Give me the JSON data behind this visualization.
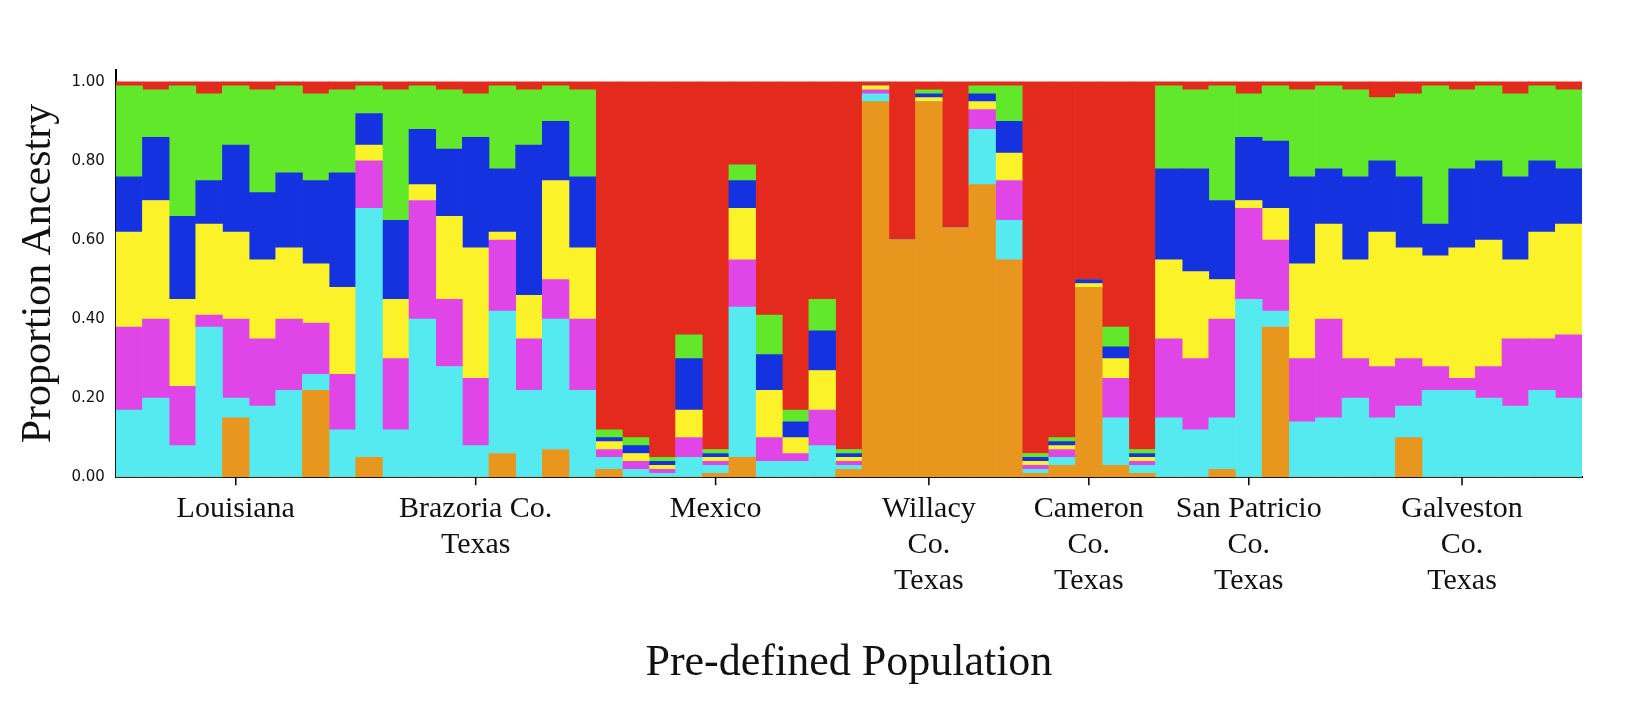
{
  "chart_data": {
    "type": "bar",
    "stacked": true,
    "xlabel": "Pre-defined Population",
    "ylabel": "Proportion Ancestry",
    "categories": [
      null,
      null,
      null,
      null,
      "Louisiana",
      null,
      null,
      null,
      null,
      null,
      null,
      null,
      null,
      "Brazoria Co.\nTexas",
      null,
      null,
      null,
      null,
      null,
      null,
      null,
      null,
      "Mexico",
      null,
      null,
      null,
      null,
      null,
      null,
      null,
      "Willacy\nCo.\nTexas",
      null,
      null,
      null,
      null,
      null,
      "Cameron\nCo.\nTexas",
      null,
      null,
      null,
      null,
      null,
      "San Patricio\nCo.\nTexas",
      null,
      null,
      null,
      null,
      null,
      null,
      null,
      "Galveston\nCo.\nTexas",
      null,
      null,
      null,
      null
    ],
    "ylim": [
      0,
      1.03
    ],
    "yticks": [
      {
        "value": 0,
        "label": "0.00"
      },
      {
        "value": 0.2,
        "label": "0.20"
      },
      {
        "value": 0.4,
        "label": "0.40"
      },
      {
        "value": 0.6,
        "label": "0.60"
      },
      {
        "value": 0.8,
        "label": "0.80"
      },
      {
        "value": 1,
        "label": "1.00"
      }
    ],
    "grid": false,
    "legend": false,
    "series": [
      {
        "color": "#e8961e",
        "values": [
          0,
          0,
          0,
          0,
          0.15,
          0,
          0,
          0.22,
          0,
          0.05,
          0,
          0,
          0,
          0,
          0.06,
          0,
          0.07,
          0,
          0.02,
          0,
          0,
          0,
          0.01,
          0.05,
          0,
          0,
          0,
          0.02,
          0.95,
          0.6,
          0.95,
          0.63,
          0.74,
          0.55,
          0.01,
          0.03,
          0.48,
          0.03,
          0.01,
          0,
          0,
          0.02,
          0,
          0.38,
          0,
          0,
          0,
          0,
          0.1,
          0,
          0,
          0,
          0,
          0,
          0
        ]
      },
      {
        "color": "#55eaf0",
        "values": [
          0.17,
          0.2,
          0.08,
          0.38,
          0.05,
          0.18,
          0.22,
          0.04,
          0.12,
          0.63,
          0.12,
          0.4,
          0.28,
          0.08,
          0.36,
          0.22,
          0.33,
          0.22,
          0.03,
          0.02,
          0.01,
          0.05,
          0.02,
          0.38,
          0.04,
          0.04,
          0.08,
          0.01,
          0.02,
          0,
          0,
          0,
          0.14,
          0.1,
          0.01,
          0.02,
          0,
          0.12,
          0.02,
          0.15,
          0.12,
          0.13,
          0.45,
          0.04,
          0.14,
          0.15,
          0.2,
          0.15,
          0.08,
          0.22,
          0.22,
          0.2,
          0.18,
          0.22,
          0.2
        ]
      },
      {
        "color": "#e045e8",
        "values": [
          0.21,
          0.2,
          0.15,
          0.03,
          0.2,
          0.17,
          0.18,
          0.13,
          0.14,
          0.12,
          0.18,
          0.3,
          0.17,
          0.17,
          0.18,
          0.13,
          0.1,
          0.18,
          0.02,
          0.02,
          0.01,
          0.05,
          0.01,
          0.12,
          0.06,
          0.02,
          0.09,
          0.01,
          0.01,
          0,
          0,
          0,
          0.05,
          0.1,
          0.01,
          0.02,
          0,
          0.1,
          0.01,
          0.2,
          0.18,
          0.25,
          0.23,
          0.18,
          0.16,
          0.25,
          0.1,
          0.13,
          0.12,
          0.06,
          0.03,
          0.08,
          0.17,
          0.13,
          0.16
        ]
      },
      {
        "color": "#fcf22a",
        "values": [
          0.24,
          0.3,
          0.22,
          0.23,
          0.22,
          0.2,
          0.18,
          0.15,
          0.22,
          0.04,
          0.15,
          0.04,
          0.21,
          0.33,
          0.02,
          0.11,
          0.25,
          0.18,
          0.02,
          0.02,
          0.01,
          0.07,
          0.01,
          0.13,
          0.12,
          0.04,
          0.1,
          0.01,
          0.01,
          0,
          0.01,
          0,
          0.02,
          0.07,
          0.01,
          0.01,
          0.01,
          0.05,
          0.01,
          0.2,
          0.22,
          0.1,
          0.02,
          0.08,
          0.24,
          0.24,
          0.25,
          0.34,
          0.28,
          0.28,
          0.33,
          0.32,
          0.2,
          0.27,
          0.28
        ]
      },
      {
        "color": "#1432e0",
        "values": [
          0.14,
          0.16,
          0.21,
          0.11,
          0.22,
          0.17,
          0.19,
          0.21,
          0.29,
          0.08,
          0.2,
          0.14,
          0.17,
          0.28,
          0.16,
          0.38,
          0.15,
          0.18,
          0.01,
          0.02,
          0.01,
          0.13,
          0.01,
          0.07,
          0.09,
          0.04,
          0.1,
          0.01,
          0,
          0,
          0.01,
          0,
          0.02,
          0.08,
          0.01,
          0.01,
          0.01,
          0.03,
          0.01,
          0.23,
          0.26,
          0.2,
          0.16,
          0.17,
          0.22,
          0.14,
          0.21,
          0.18,
          0.18,
          0.08,
          0.2,
          0.2,
          0.21,
          0.18,
          0.14
        ]
      },
      {
        "color": "#62e82a",
        "values": [
          0.23,
          0.12,
          0.33,
          0.22,
          0.15,
          0.26,
          0.22,
          0.22,
          0.21,
          0.07,
          0.33,
          0.11,
          0.15,
          0.11,
          0.21,
          0.14,
          0.09,
          0.22,
          0.02,
          0.02,
          0.01,
          0.06,
          0.01,
          0.04,
          0.1,
          0.03,
          0.08,
          0.01,
          0,
          0,
          0.01,
          0,
          0.02,
          0.09,
          0.01,
          0.01,
          0,
          0.05,
          0.01,
          0.21,
          0.2,
          0.29,
          0.11,
          0.14,
          0.22,
          0.21,
          0.22,
          0.16,
          0.21,
          0.35,
          0.2,
          0.19,
          0.21,
          0.19,
          0.2
        ]
      },
      {
        "color": "#e42a1c",
        "values": [
          0.01,
          0.02,
          0.01,
          0.03,
          0.01,
          0.02,
          0.01,
          0.03,
          0.02,
          0.01,
          0.02,
          0.01,
          0.02,
          0.03,
          0.01,
          0.02,
          0.01,
          0.02,
          0.88,
          0.9,
          0.95,
          0.64,
          0.93,
          0.21,
          0.59,
          0.83,
          0.55,
          0.93,
          0.01,
          0.4,
          0.02,
          0.37,
          0.01,
          0.01,
          0.94,
          0.9,
          0.5,
          0.62,
          0.93,
          0.01,
          0.02,
          0.01,
          0.03,
          0.01,
          0.02,
          0.01,
          0.02,
          0.04,
          0.03,
          0.01,
          0.02,
          0.01,
          0.03,
          0.01,
          0.02
        ]
      }
    ]
  }
}
